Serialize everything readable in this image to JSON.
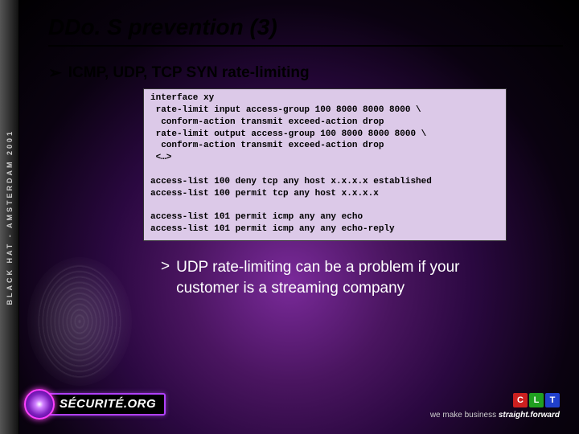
{
  "sidebar": {
    "text": "BLACK HAT - AMSTERDAM 2001"
  },
  "title": "DDo. S prevention (3)",
  "bullet": {
    "text": "ICMP, UDP,  TCP SYN rate-limiting"
  },
  "code": "interface xy\n rate-limit input access-group 100 8000 8000 8000 \\\n  conform-action transmit exceed-action drop\n rate-limit output access-group 100 8000 8000 8000 \\\n  conform-action transmit exceed-action drop\n <…>\n\naccess-list 100 deny tcp any host x.x.x.x established\naccess-list 100 permit tcp any host x.x.x.x\n\naccess-list 101 permit icmp any any echo\naccess-list 101 permit icmp any any echo-reply",
  "note": {
    "arrow": ">",
    "text": "UDP rate-limiting can be a problem if your customer is a streaming company"
  },
  "logo": {
    "text": "SÉCURITÉ.ORG"
  },
  "clt": {
    "boxes": [
      {
        "letter": "C",
        "color": "#cc2020"
      },
      {
        "letter": "L",
        "color": "#20a020"
      },
      {
        "letter": "T",
        "color": "#2040cc"
      }
    ],
    "tagline_prefix": "we make business ",
    "tagline_emph": "straight.forward"
  }
}
